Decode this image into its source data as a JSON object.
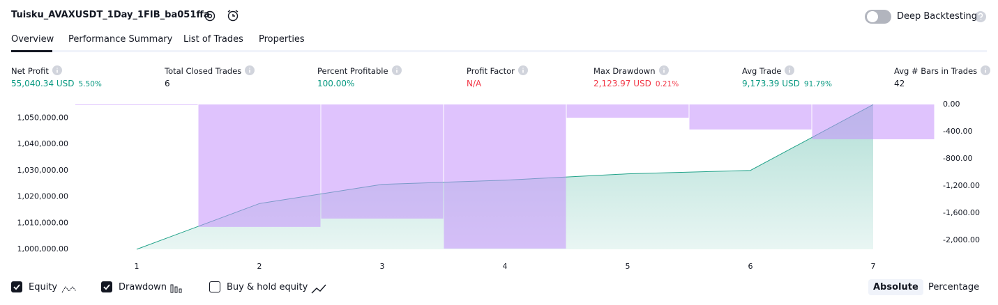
{
  "header": {
    "title": "Tuisku_AVAXUSDT_1Day_1FIB_ba051ffa",
    "toggle_label": "Deep Backtesting"
  },
  "tabs": [
    {
      "label": "Overview",
      "active": true
    },
    {
      "label": "Performance Summary",
      "active": false
    },
    {
      "label": "List of Trades",
      "active": false
    },
    {
      "label": "Properties",
      "active": false
    }
  ],
  "metrics": [
    {
      "label": "Net Profit",
      "value": "55,040.34 USD",
      "percent": "5.50%",
      "color": "#089981"
    },
    {
      "label": "Total Closed Trades",
      "value": "6",
      "color": "#131722"
    },
    {
      "label": "Percent Profitable",
      "value": "100.00%",
      "color": "#089981"
    },
    {
      "label": "Profit Factor",
      "value": "N/A",
      "color": "#f23645"
    },
    {
      "label": "Max Drawdown",
      "value": "2,123.97 USD",
      "percent": "0.21%",
      "color": "#f23645"
    },
    {
      "label": "Avg Trade",
      "value": "9,173.39 USD",
      "percent": "91.79%",
      "color": "#089981"
    },
    {
      "label": "Avg # Bars in Trades",
      "value": "42",
      "color": "#131722"
    }
  ],
  "chart_data": {
    "type": "bar_line",
    "x": [
      1,
      2,
      3,
      4,
      5,
      6,
      7
    ],
    "xlim": [
      0.5,
      7.5
    ],
    "xticks": [
      1,
      2,
      3,
      4,
      5,
      6,
      7
    ],
    "ylim": [
      1000000,
      1055100
    ],
    "yticks": [
      {
        "value": 1000000,
        "label": "1,000,000.00"
      },
      {
        "value": 1010000,
        "label": "1,010,000.00"
      },
      {
        "value": 1020000,
        "label": "1,020,000.00"
      },
      {
        "value": 1030000,
        "label": "1,030,000.00"
      },
      {
        "value": 1040000,
        "label": "1,040,000.00"
      },
      {
        "value": 1050000,
        "label": "1,050,000.00"
      }
    ],
    "y2lim": [
      -2135,
      0
    ],
    "y2ticks": [
      {
        "value": 0,
        "label": "0.00"
      },
      {
        "value": -400,
        "label": "-400.00"
      },
      {
        "value": -800,
        "label": "-800.00"
      },
      {
        "value": -1200,
        "label": "-1,200.00"
      },
      {
        "value": -1600,
        "label": "-1,600.00"
      },
      {
        "value": -2000,
        "label": "-2,000.00"
      }
    ],
    "series": [
      {
        "name": "Equity",
        "color": "#22a38a",
        "values": [
          1000000,
          1017400,
          1024700,
          1026300,
          1028700,
          1030000,
          1055040
        ]
      },
      {
        "name": "Drawdown",
        "color": "#c591fb",
        "axis": "y2",
        "values": [
          0,
          -1805,
          -1682,
          -2124,
          -195,
          -369,
          -513
        ]
      }
    ]
  },
  "footer": {
    "checkboxes": [
      {
        "label": "Equity",
        "checked": true
      },
      {
        "label": "Drawdown",
        "checked": true
      },
      {
        "label": "Buy & hold equity",
        "checked": false
      }
    ],
    "modes": [
      {
        "label": "Absolute",
        "active": true
      },
      {
        "label": "Percentage",
        "active": false
      }
    ]
  }
}
